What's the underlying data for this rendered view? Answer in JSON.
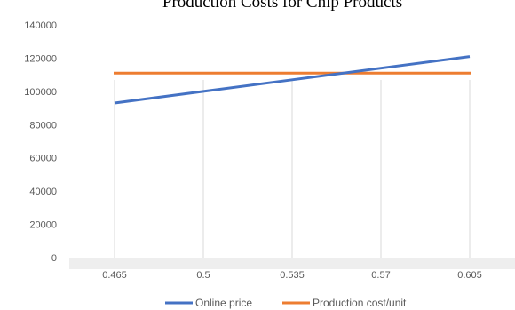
{
  "chart_data": {
    "type": "line",
    "title": "Production Costs for Chip Products",
    "xlabel": "",
    "ylabel": "",
    "categories": [
      "0.465",
      "0.5",
      "0.535",
      "0.57",
      "0.605"
    ],
    "ylim": [
      0,
      140000
    ],
    "yticks": [
      0,
      20000,
      40000,
      60000,
      80000,
      100000,
      120000,
      140000
    ],
    "grid": "vertical",
    "legend": "bottom",
    "series": [
      {
        "name": "Online price",
        "color": "#4472c4",
        "values": [
          93000,
          100000,
          107000,
          114000,
          121000
        ]
      },
      {
        "name": "Production cost/unit",
        "color": "#ed7d31",
        "values": [
          111000,
          111000,
          111000,
          111000,
          111000
        ]
      }
    ]
  }
}
